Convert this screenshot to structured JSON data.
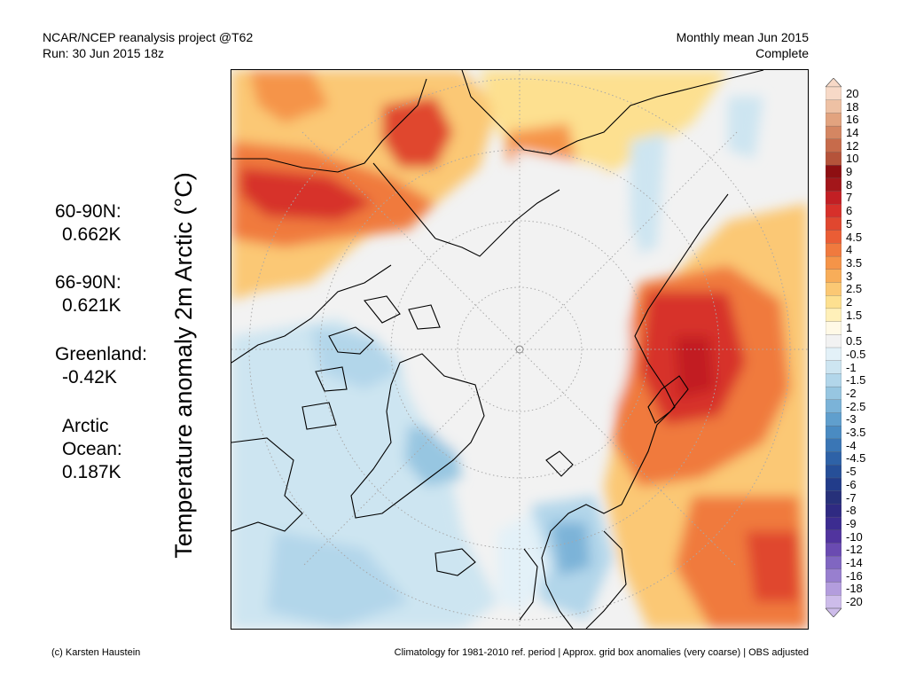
{
  "header": {
    "line1_left": "NCAR/NCEP reanalysis project @T62",
    "line2_left": "Run: 30 Jun 2015 18z",
    "line1_right": "Monthly mean Jun 2015",
    "line2_right": "Complete"
  },
  "title": "Temperature anomaly 2m Arctic (°C)",
  "stats": [
    {
      "label": "60-90N:",
      "value": "0.662K"
    },
    {
      "label": "66-90N:",
      "value": "0.621K"
    },
    {
      "label": "Greenland:",
      "value": "-0.42K"
    },
    {
      "label": "Arctic",
      "label2": "Ocean:",
      "value": "0.187K"
    }
  ],
  "colorbar": {
    "labels": [
      "20",
      "18",
      "16",
      "14",
      "12",
      "10",
      "9",
      "8",
      "7",
      "6",
      "5",
      "4.5",
      "4",
      "3.5",
      "3",
      "2.5",
      "2",
      "1.5",
      "1",
      "0.5",
      "-0.5",
      "-1",
      "-1.5",
      "-2",
      "-2.5",
      "-3",
      "-3.5",
      "-4",
      "-4.5",
      "-5",
      "-6",
      "-7",
      "-8",
      "-9",
      "-10",
      "-12",
      "-14",
      "-16",
      "-18",
      "-20"
    ],
    "colors": [
      "#f7d9c7",
      "#eec1a4",
      "#e2a37f",
      "#d48662",
      "#c76b4b",
      "#b5533a",
      "#8e0f12",
      "#a3161a",
      "#c21f24",
      "#d7302a",
      "#e0472f",
      "#ea5d35",
      "#f07a3e",
      "#f59448",
      "#f8ad59",
      "#fbc874",
      "#fde090",
      "#fff0b9",
      "#fff9e6",
      "#f2f2f2",
      "#e3f1f8",
      "#cde5f1",
      "#b2d6ea",
      "#97c6e1",
      "#7bb3d8",
      "#609fcd",
      "#4a8bc2",
      "#3a76b5",
      "#2e62a7",
      "#264f98",
      "#223c8a",
      "#27317a",
      "#2f2a82",
      "#3c2c90",
      "#51349e",
      "#6a4bb1",
      "#8066c1",
      "#987fcf",
      "#b39ddd",
      "#cdbcea"
    ]
  },
  "footer": {
    "left": "(c) Karsten Haustein",
    "right": "Climatology for 1981-2010 ref. period | Approx. grid box anomalies (very coarse) | OBS adjusted"
  }
}
